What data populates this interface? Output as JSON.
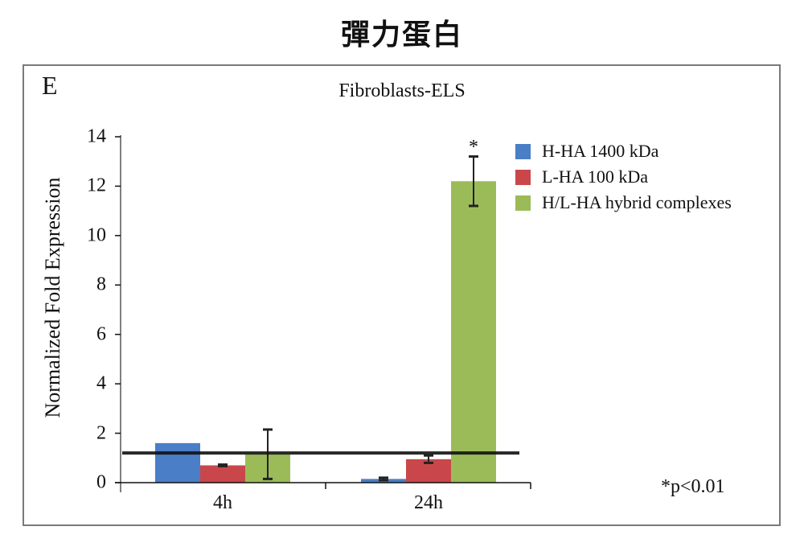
{
  "page": {
    "title": "彈力蛋白",
    "panel_letter": "E"
  },
  "chart_data": {
    "type": "bar",
    "title": "Fibroblasts-ELS",
    "xlabel": "",
    "ylabel": "Normalized Fold Expression",
    "ylim": [
      0,
      14
    ],
    "yticks": [
      "0",
      "2",
      "4",
      "6",
      "8",
      "10",
      "12",
      "14"
    ],
    "categories": [
      "4h",
      "24h"
    ],
    "series": [
      {
        "name": "H-HA 1400 kDa",
        "color": "#4a7ec6",
        "values": [
          1.6,
          0.15
        ],
        "error": [
          0,
          0.05
        ]
      },
      {
        "name": "L-HA 100 kDa",
        "color": "#c9474a",
        "values": [
          0.7,
          0.95
        ],
        "error": [
          0.03,
          0.15
        ]
      },
      {
        "name": "H/L-HA hybrid complexes",
        "color": "#9bbb59",
        "values": [
          1.15,
          12.2
        ],
        "error": [
          1.0,
          1.0
        ]
      }
    ],
    "reference_line": {
      "y": 1.2,
      "color": "#111111"
    },
    "annotations": [
      {
        "text": "*",
        "category": "24h",
        "series": "H/L-HA hybrid complexes"
      },
      {
        "text": "*p<0.01",
        "position": "bottom-right"
      }
    ],
    "grid": false,
    "legend_position": "upper-right"
  }
}
